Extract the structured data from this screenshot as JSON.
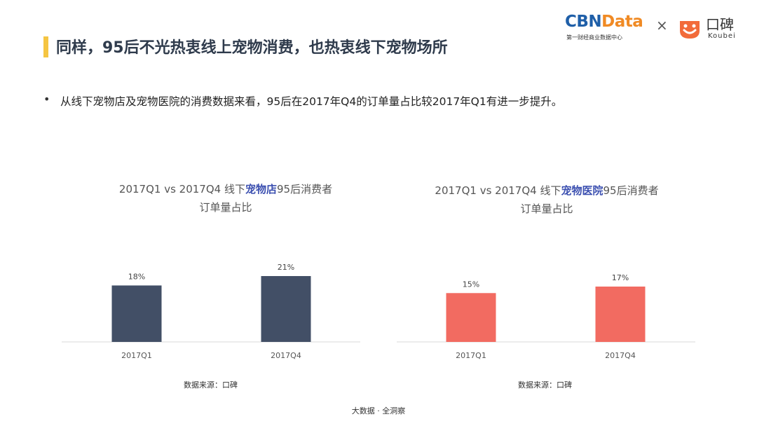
{
  "header": {
    "title": "同样，95后不光热衷线上宠物消费，也热衷线下宠物场所"
  },
  "brand": {
    "cbn_part1": "CBN",
    "cbn_part2": "Data",
    "cbn_sub": "第一财经商业数据中心",
    "times": "×",
    "koubei_name": "口碑",
    "koubei_sub": "Koubei",
    "colors": {
      "cbn": "#1f5fa8",
      "data": "#f08a24",
      "koubei": "#f26b3a"
    }
  },
  "bullet": {
    "text": "从线下宠物店及宠物医院的消费数据来看，95后在2017年Q4的订单量占比较2017年Q1有进一步提升。"
  },
  "chart_data": [
    {
      "type": "bar",
      "title_pre": "2017Q1 vs 2017Q4 线下",
      "title_highlight": "宠物店",
      "title_post": "95后消费者",
      "title_line2": "订单量占比",
      "categories": [
        "2017Q1",
        "2017Q4"
      ],
      "values": [
        18,
        21
      ],
      "labels": [
        "18%",
        "21%"
      ],
      "ylim": [
        0,
        21
      ],
      "color": "#424f66",
      "source": "数据来源：口碑"
    },
    {
      "type": "bar",
      "title_pre": "2017Q1 vs 2017Q4 线下",
      "title_highlight": "宠物医院",
      "title_post": "95后消费者",
      "title_line2": "订单量占比",
      "categories": [
        "2017Q1",
        "2017Q4"
      ],
      "values": [
        15,
        17
      ],
      "labels": [
        "15%",
        "17%"
      ],
      "ylim": [
        0,
        17
      ],
      "color": "#f26b61",
      "source": "数据来源：口碑"
    }
  ],
  "footer": {
    "text": "大数据 · 全洞察"
  }
}
